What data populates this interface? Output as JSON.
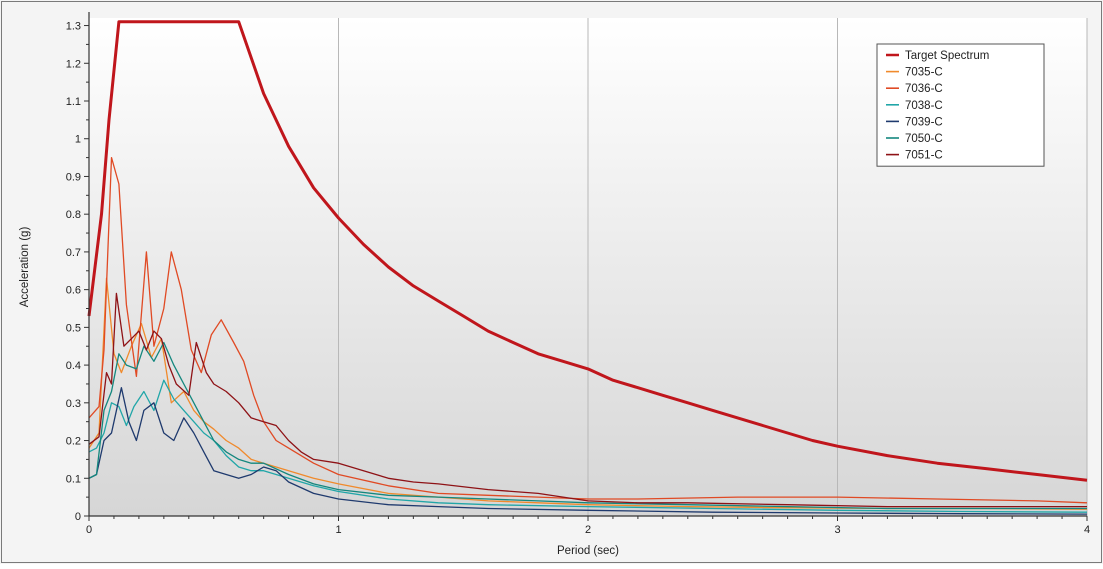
{
  "chart_data": {
    "type": "line",
    "title": "",
    "xlabel": "Period (sec)",
    "ylabel": "Acceleration (g)",
    "xlim": [
      0,
      4
    ],
    "ylim": [
      0,
      1.32
    ],
    "x_ticks": [
      0,
      1,
      2,
      3,
      4
    ],
    "y_ticks": [
      0,
      0.1,
      0.2,
      0.3,
      0.4,
      0.5,
      0.6,
      0.7,
      0.8,
      0.9,
      1,
      1.1,
      1.2,
      1.3
    ],
    "grid": true,
    "legend_position": "top-right",
    "series": [
      {
        "name": "Target Spectrum",
        "color": "#c0161c",
        "width": 3,
        "points": [
          [
            0,
            0.53
          ],
          [
            0.05,
            0.8
          ],
          [
            0.08,
            1.05
          ],
          [
            0.12,
            1.31
          ],
          [
            0.25,
            1.31
          ],
          [
            0.4,
            1.31
          ],
          [
            0.6,
            1.31
          ],
          [
            0.7,
            1.12
          ],
          [
            0.8,
            0.98
          ],
          [
            0.9,
            0.87
          ],
          [
            1.0,
            0.79
          ],
          [
            1.1,
            0.72
          ],
          [
            1.2,
            0.66
          ],
          [
            1.3,
            0.61
          ],
          [
            1.4,
            0.57
          ],
          [
            1.5,
            0.53
          ],
          [
            1.6,
            0.49
          ],
          [
            1.7,
            0.46
          ],
          [
            1.8,
            0.43
          ],
          [
            1.9,
            0.41
          ],
          [
            2.0,
            0.39
          ],
          [
            2.1,
            0.36
          ],
          [
            2.2,
            0.34
          ],
          [
            2.3,
            0.32
          ],
          [
            2.4,
            0.3
          ],
          [
            2.5,
            0.28
          ],
          [
            2.6,
            0.26
          ],
          [
            2.7,
            0.24
          ],
          [
            2.8,
            0.22
          ],
          [
            2.9,
            0.2
          ],
          [
            3.0,
            0.185
          ],
          [
            3.2,
            0.16
          ],
          [
            3.4,
            0.14
          ],
          [
            3.6,
            0.125
          ],
          [
            3.8,
            0.11
          ],
          [
            4.0,
            0.095
          ]
        ]
      },
      {
        "name": "7035-C",
        "color": "#f08a2c",
        "width": 1.3,
        "points": [
          [
            0,
            0.18
          ],
          [
            0.04,
            0.22
          ],
          [
            0.07,
            0.63
          ],
          [
            0.1,
            0.43
          ],
          [
            0.13,
            0.38
          ],
          [
            0.17,
            0.45
          ],
          [
            0.21,
            0.51
          ],
          [
            0.25,
            0.42
          ],
          [
            0.29,
            0.47
          ],
          [
            0.33,
            0.3
          ],
          [
            0.38,
            0.33
          ],
          [
            0.42,
            0.28
          ],
          [
            0.46,
            0.25
          ],
          [
            0.5,
            0.23
          ],
          [
            0.55,
            0.2
          ],
          [
            0.6,
            0.18
          ],
          [
            0.65,
            0.15
          ],
          [
            0.7,
            0.14
          ],
          [
            0.8,
            0.12
          ],
          [
            0.9,
            0.1
          ],
          [
            1.0,
            0.085
          ],
          [
            1.2,
            0.06
          ],
          [
            1.4,
            0.05
          ],
          [
            1.6,
            0.04
          ],
          [
            1.8,
            0.035
          ],
          [
            2.0,
            0.03
          ],
          [
            2.4,
            0.025
          ],
          [
            2.8,
            0.022
          ],
          [
            3.2,
            0.02
          ],
          [
            3.6,
            0.02
          ],
          [
            4.0,
            0.018
          ]
        ]
      },
      {
        "name": "7036-C",
        "color": "#e04a24",
        "width": 1.3,
        "points": [
          [
            0,
            0.26
          ],
          [
            0.04,
            0.29
          ],
          [
            0.06,
            0.44
          ],
          [
            0.09,
            0.95
          ],
          [
            0.12,
            0.88
          ],
          [
            0.15,
            0.56
          ],
          [
            0.19,
            0.37
          ],
          [
            0.23,
            0.7
          ],
          [
            0.26,
            0.45
          ],
          [
            0.3,
            0.55
          ],
          [
            0.33,
            0.7
          ],
          [
            0.37,
            0.6
          ],
          [
            0.41,
            0.44
          ],
          [
            0.45,
            0.38
          ],
          [
            0.49,
            0.48
          ],
          [
            0.53,
            0.52
          ],
          [
            0.58,
            0.46
          ],
          [
            0.62,
            0.41
          ],
          [
            0.66,
            0.32
          ],
          [
            0.7,
            0.25
          ],
          [
            0.75,
            0.2
          ],
          [
            0.8,
            0.18
          ],
          [
            0.9,
            0.14
          ],
          [
            1.0,
            0.11
          ],
          [
            1.2,
            0.08
          ],
          [
            1.4,
            0.06
          ],
          [
            1.6,
            0.055
          ],
          [
            1.8,
            0.05
          ],
          [
            2.0,
            0.045
          ],
          [
            2.2,
            0.045
          ],
          [
            2.6,
            0.05
          ],
          [
            3.0,
            0.05
          ],
          [
            3.4,
            0.045
          ],
          [
            3.8,
            0.04
          ],
          [
            4.0,
            0.035
          ]
        ]
      },
      {
        "name": "7038-C",
        "color": "#21a6a8",
        "width": 1.3,
        "points": [
          [
            0,
            0.17
          ],
          [
            0.03,
            0.18
          ],
          [
            0.06,
            0.22
          ],
          [
            0.09,
            0.3
          ],
          [
            0.12,
            0.29
          ],
          [
            0.15,
            0.24
          ],
          [
            0.18,
            0.29
          ],
          [
            0.22,
            0.33
          ],
          [
            0.26,
            0.28
          ],
          [
            0.3,
            0.36
          ],
          [
            0.34,
            0.31
          ],
          [
            0.38,
            0.28
          ],
          [
            0.42,
            0.25
          ],
          [
            0.46,
            0.22
          ],
          [
            0.5,
            0.2
          ],
          [
            0.55,
            0.16
          ],
          [
            0.6,
            0.13
          ],
          [
            0.65,
            0.12
          ],
          [
            0.7,
            0.12
          ],
          [
            0.8,
            0.1
          ],
          [
            0.9,
            0.08
          ],
          [
            1.0,
            0.065
          ],
          [
            1.2,
            0.045
          ],
          [
            1.4,
            0.035
          ],
          [
            1.6,
            0.03
          ],
          [
            2.0,
            0.025
          ],
          [
            2.5,
            0.02
          ],
          [
            3.0,
            0.015
          ],
          [
            3.5,
            0.012
          ],
          [
            4.0,
            0.01
          ]
        ]
      },
      {
        "name": "7039-C",
        "color": "#1f3a6e",
        "width": 1.3,
        "points": [
          [
            0,
            0.1
          ],
          [
            0.03,
            0.11
          ],
          [
            0.06,
            0.2
          ],
          [
            0.09,
            0.22
          ],
          [
            0.13,
            0.34
          ],
          [
            0.16,
            0.25
          ],
          [
            0.19,
            0.2
          ],
          [
            0.22,
            0.28
          ],
          [
            0.26,
            0.3
          ],
          [
            0.3,
            0.22
          ],
          [
            0.34,
            0.2
          ],
          [
            0.38,
            0.26
          ],
          [
            0.42,
            0.22
          ],
          [
            0.46,
            0.17
          ],
          [
            0.5,
            0.12
          ],
          [
            0.55,
            0.11
          ],
          [
            0.6,
            0.1
          ],
          [
            0.65,
            0.11
          ],
          [
            0.7,
            0.13
          ],
          [
            0.75,
            0.12
          ],
          [
            0.8,
            0.09
          ],
          [
            0.9,
            0.06
          ],
          [
            1.0,
            0.045
          ],
          [
            1.2,
            0.03
          ],
          [
            1.4,
            0.025
          ],
          [
            1.6,
            0.02
          ],
          [
            2.0,
            0.015
          ],
          [
            2.5,
            0.01
          ],
          [
            3.0,
            0.008
          ],
          [
            3.5,
            0.006
          ],
          [
            4.0,
            0.005
          ]
        ]
      },
      {
        "name": "7050-C",
        "color": "#14877e",
        "width": 1.3,
        "points": [
          [
            0,
            0.1
          ],
          [
            0.03,
            0.11
          ],
          [
            0.06,
            0.28
          ],
          [
            0.09,
            0.33
          ],
          [
            0.12,
            0.43
          ],
          [
            0.15,
            0.4
          ],
          [
            0.19,
            0.39
          ],
          [
            0.22,
            0.45
          ],
          [
            0.26,
            0.41
          ],
          [
            0.3,
            0.46
          ],
          [
            0.34,
            0.4
          ],
          [
            0.38,
            0.35
          ],
          [
            0.42,
            0.3
          ],
          [
            0.46,
            0.25
          ],
          [
            0.5,
            0.2
          ],
          [
            0.55,
            0.17
          ],
          [
            0.6,
            0.15
          ],
          [
            0.65,
            0.14
          ],
          [
            0.7,
            0.14
          ],
          [
            0.8,
            0.11
          ],
          [
            0.9,
            0.085
          ],
          [
            1.0,
            0.07
          ],
          [
            1.2,
            0.055
          ],
          [
            1.4,
            0.05
          ],
          [
            1.6,
            0.045
          ],
          [
            1.8,
            0.04
          ],
          [
            2.0,
            0.035
          ],
          [
            2.4,
            0.03
          ],
          [
            2.8,
            0.025
          ],
          [
            3.2,
            0.02
          ],
          [
            3.6,
            0.02
          ],
          [
            4.0,
            0.02
          ]
        ]
      },
      {
        "name": "7051-C",
        "color": "#8e1216",
        "width": 1.3,
        "points": [
          [
            0,
            0.19
          ],
          [
            0.04,
            0.21
          ],
          [
            0.07,
            0.38
          ],
          [
            0.09,
            0.35
          ],
          [
            0.11,
            0.59
          ],
          [
            0.14,
            0.45
          ],
          [
            0.17,
            0.47
          ],
          [
            0.2,
            0.49
          ],
          [
            0.23,
            0.44
          ],
          [
            0.26,
            0.49
          ],
          [
            0.29,
            0.47
          ],
          [
            0.32,
            0.4
          ],
          [
            0.35,
            0.35
          ],
          [
            0.4,
            0.32
          ],
          [
            0.43,
            0.46
          ],
          [
            0.47,
            0.38
          ],
          [
            0.5,
            0.35
          ],
          [
            0.55,
            0.33
          ],
          [
            0.6,
            0.3
          ],
          [
            0.65,
            0.26
          ],
          [
            0.7,
            0.25
          ],
          [
            0.75,
            0.24
          ],
          [
            0.8,
            0.2
          ],
          [
            0.85,
            0.17
          ],
          [
            0.9,
            0.15
          ],
          [
            1.0,
            0.14
          ],
          [
            1.1,
            0.12
          ],
          [
            1.2,
            0.1
          ],
          [
            1.3,
            0.09
          ],
          [
            1.4,
            0.085
          ],
          [
            1.6,
            0.07
          ],
          [
            1.8,
            0.06
          ],
          [
            2.0,
            0.04
          ],
          [
            2.2,
            0.035
          ],
          [
            2.4,
            0.035
          ],
          [
            2.8,
            0.03
          ],
          [
            3.2,
            0.025
          ],
          [
            3.6,
            0.025
          ],
          [
            4.0,
            0.025
          ]
        ]
      }
    ]
  }
}
